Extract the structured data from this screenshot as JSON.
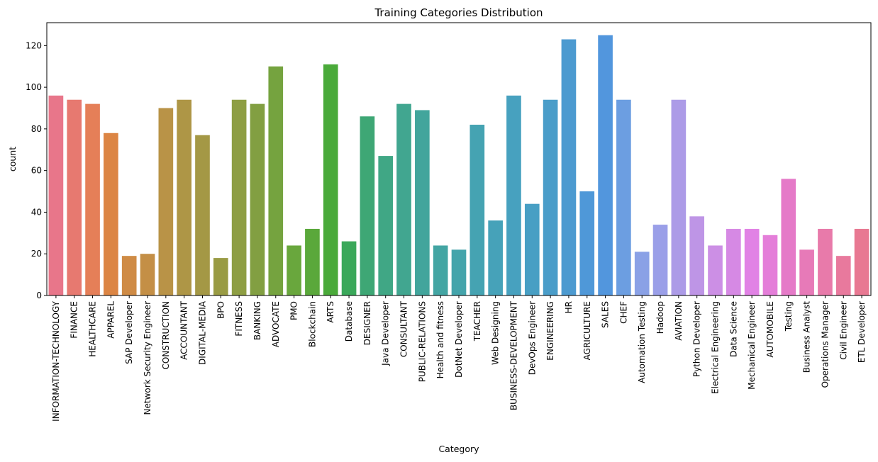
{
  "chart_data": {
    "type": "bar",
    "title": "Training Categories Distribution",
    "xlabel": "Category",
    "ylabel": "count",
    "ylim": [
      0,
      131
    ],
    "yticks": [
      0,
      20,
      40,
      60,
      80,
      100,
      120
    ],
    "grid": false,
    "categories": [
      "INFORMATION-TECHNOLOGY",
      "FINANCE",
      "HEALTHCARE",
      "APPAREL",
      "SAP Developer",
      "Network Security Engineer",
      "CONSTRUCTION",
      "ACCOUNTANT",
      "DIGITAL-MEDIA",
      "BPO",
      "FITNESS",
      "BANKING",
      "ADVOCATE",
      "PMO",
      "Blockchain",
      "ARTS",
      "Database",
      "DESIGNER",
      "Java Developer",
      "CONSULTANT",
      "PUBLIC-RELATIONS",
      "Health and fitness",
      "DotNet Developer",
      "TEACHER",
      "Web Designing",
      "BUSINESS-DEVELOPMENT",
      "DevOps Engineer",
      "ENGINEERING",
      "HR",
      "AGRICULTURE",
      "SALES",
      "CHEF",
      "Automation Testing",
      "Hadoop",
      "AVIATION",
      "Python Developer",
      "Electrical Engineering",
      "Data Science",
      "Mechanical Engineer",
      "AUTOMOBILE",
      "Testing",
      "Business Analyst",
      "Operations Manager",
      "Civil Engineer",
      "ETL Developer"
    ],
    "values": [
      96,
      94,
      92,
      78,
      19,
      20,
      90,
      94,
      77,
      18,
      94,
      92,
      110,
      24,
      32,
      111,
      26,
      86,
      67,
      92,
      89,
      24,
      22,
      82,
      36,
      96,
      44,
      94,
      123,
      50,
      125,
      94,
      21,
      34,
      94,
      38,
      24,
      32,
      32,
      29,
      56,
      22,
      32,
      19,
      32
    ],
    "colors": [
      "#e8768a",
      "#e77970",
      "#e57f58",
      "#dc8544",
      "#cf8b45",
      "#c48f46",
      "#b99347",
      "#ae9646",
      "#a49845",
      "#999b44",
      "#8e9e43",
      "#829f42",
      "#75a33f",
      "#69a73d",
      "#5aa83b",
      "#4aaa3a",
      "#3aa85a",
      "#3ea775",
      "#40a785",
      "#41a690",
      "#42a59c",
      "#43a5a3",
      "#44a4ab",
      "#45a3b2",
      "#46a2b9",
      "#47a1bf",
      "#489fc4",
      "#4a9dc9",
      "#4c9ad0",
      "#4f98d8",
      "#5296dd",
      "#6c9ee1",
      "#8aa1e6",
      "#9a9fe8",
      "#ac9be7",
      "#be95e6",
      "#cc8fe5",
      "#d689e4",
      "#e182e5",
      "#e47ed9",
      "#e57ac8",
      "#e77ab8",
      "#e87aaa",
      "#e8799d",
      "#e87892"
    ]
  }
}
